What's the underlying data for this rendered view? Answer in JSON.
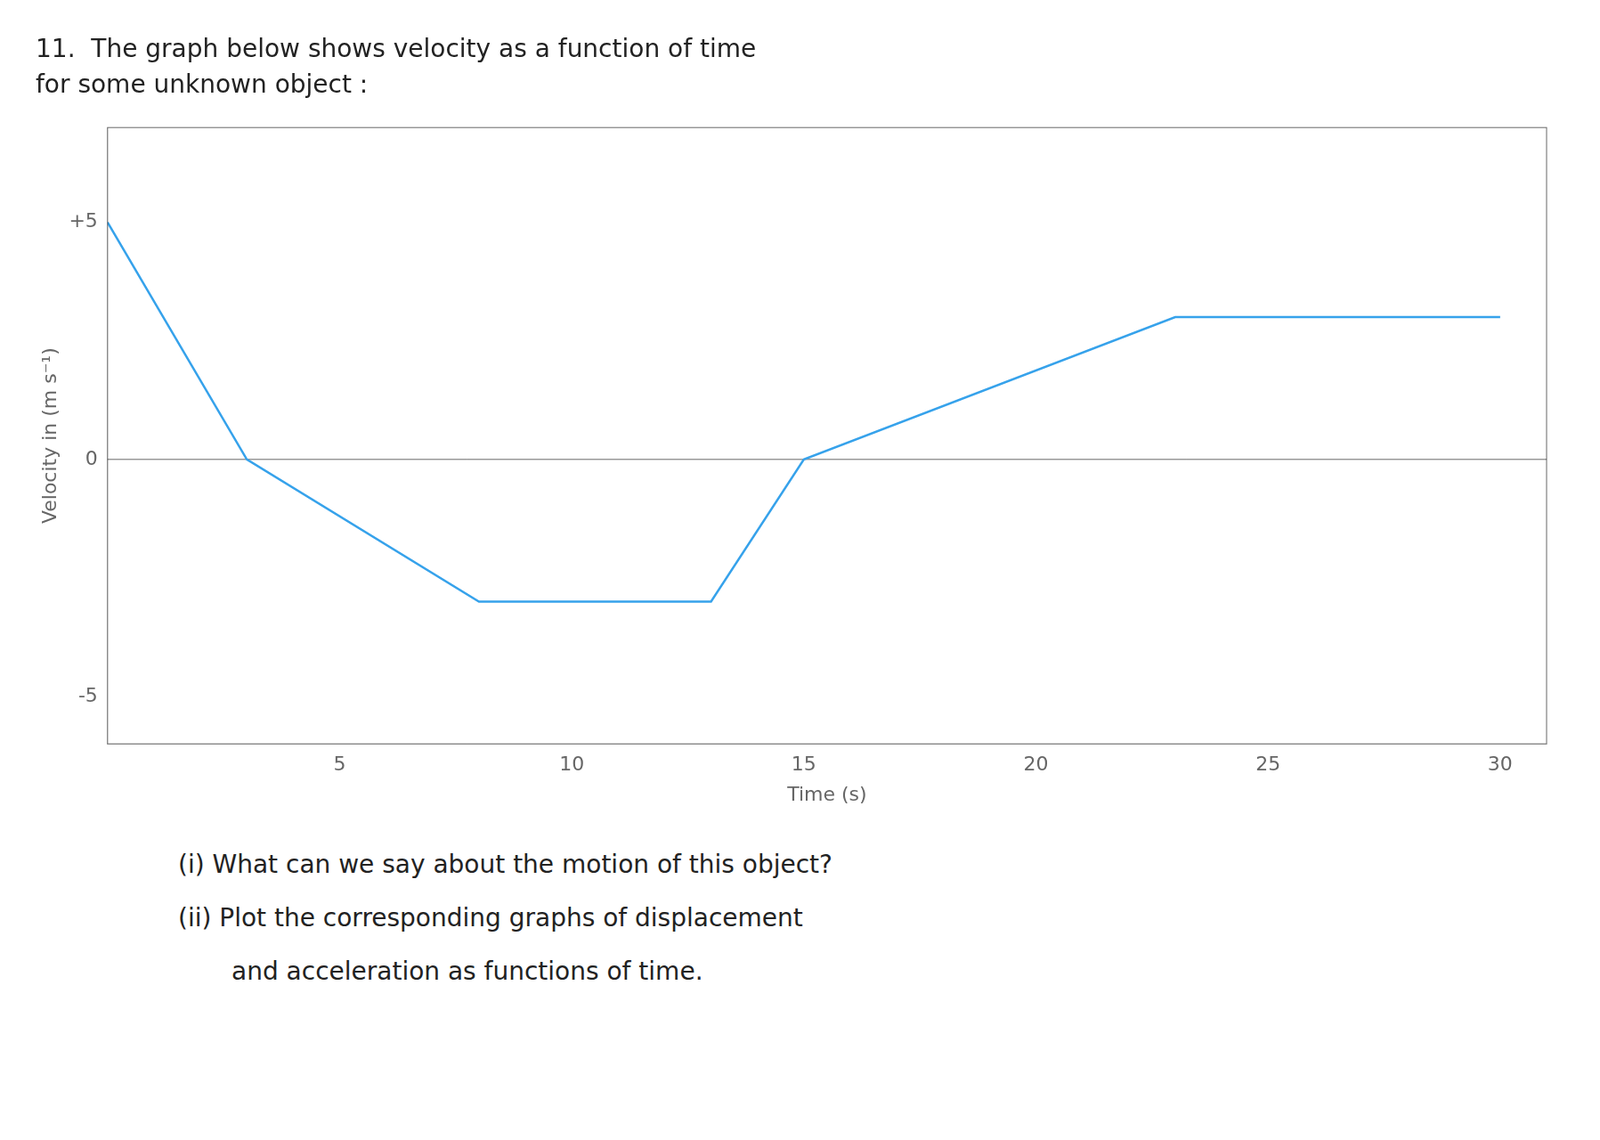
{
  "chart_data": {
    "type": "line",
    "title": "11.  The graph below shows velocity as a function of time",
    "subtitle": "for some unknown object :",
    "x_label": "Time (s)",
    "y_label": "Velocity in (m s⁻¹)",
    "x": [
      0,
      3,
      8,
      13,
      15,
      23,
      30
    ],
    "values": [
      5,
      0,
      -3,
      -3,
      0,
      3,
      3
    ],
    "xlim": [
      0,
      31
    ],
    "ylim": [
      -6,
      7
    ],
    "xticks": [
      5,
      10,
      15,
      20,
      25,
      30
    ],
    "yticks": [
      -5,
      0,
      {
        "value": 5,
        "label": "+5"
      }
    ],
    "grid": false,
    "annotations": [
      "(i)  What can we say about the motion of this object?",
      "(ii)  Plot the corresponding graphs of displacement",
      "and acceleration as functions of time."
    ]
  }
}
